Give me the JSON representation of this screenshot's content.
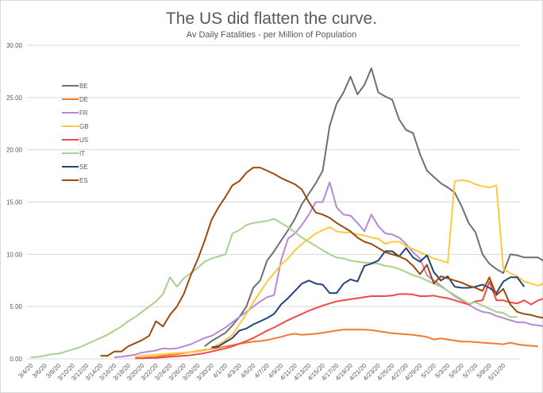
{
  "chart_data": {
    "type": "line",
    "title": "The US did flatten the curve.",
    "subtitle": "Av Daily Fatalities - per Million of Population",
    "xlabel": "",
    "ylabel": "",
    "ylim": [
      0,
      30
    ],
    "yticks": [
      "0.00",
      "5.00",
      "10.00",
      "15.00",
      "20.00",
      "25.00",
      "30.00"
    ],
    "ytick_values": [
      0,
      5,
      10,
      15,
      20,
      25,
      30
    ],
    "grid": true,
    "legend_position": "top-left",
    "x_start": "3/4/20",
    "x_tick_labels": [
      "3/4/20",
      "3/6/20",
      "3/8/20",
      "3/10/20",
      "3/12/20",
      "3/14/20",
      "3/16/20",
      "3/18/20",
      "3/20/20",
      "3/22/20",
      "3/24/20",
      "3/26/20",
      "3/28/20",
      "3/30/20",
      "4/1/20",
      "4/3/20",
      "4/5/20",
      "4/7/20",
      "4/9/20",
      "4/11/20",
      "4/13/20",
      "4/15/20",
      "4/17/20",
      "4/19/20",
      "4/21/20",
      "4/23/20",
      "4/25/20",
      "4/27/20",
      "4/29/20",
      "5/1/20",
      "5/3/20",
      "5/5/20",
      "5/7/20",
      "5/9/20",
      "5/11/20"
    ],
    "series": [
      {
        "name": "BE",
        "color": "#6f6f6f",
        "start_day": 25,
        "values": [
          1.2,
          1.7,
          2.1,
          2.5,
          3.2,
          4.0,
          5.0,
          6.8,
          7.5,
          9.4,
          10.3,
          11.3,
          12.3,
          13.4,
          14.8,
          15.8,
          16.8,
          18.0,
          22.3,
          24.4,
          25.5,
          27.0,
          25.3,
          26.2,
          27.8,
          25.5,
          25.1,
          24.8,
          22.9,
          21.9,
          21.6,
          19.6,
          18.0,
          17.4,
          16.8,
          16.4,
          15.9,
          14.6,
          13.0,
          12.1,
          10.0,
          9.1,
          8.6,
          8.2,
          10.0,
          9.9,
          9.7,
          9.7,
          9.7,
          9.3
        ]
      },
      {
        "name": "DE",
        "color": "#ed7d31",
        "start_day": 15,
        "values": [
          0.05,
          0.1,
          0.15,
          0.2,
          0.3,
          0.35,
          0.45,
          0.55,
          0.65,
          0.75,
          0.85,
          0.95,
          1.05,
          1.2,
          1.3,
          1.45,
          1.55,
          1.65,
          1.7,
          1.8,
          1.95,
          2.1,
          2.3,
          2.4,
          2.3,
          2.35,
          2.4,
          2.5,
          2.6,
          2.7,
          2.8,
          2.8,
          2.8,
          2.8,
          2.75,
          2.65,
          2.55,
          2.45,
          2.4,
          2.35,
          2.3,
          2.2,
          2.1,
          1.85,
          1.95,
          1.85,
          1.75,
          1.65,
          1.65,
          1.6,
          1.55,
          1.5,
          1.45,
          1.4,
          1.55,
          1.4,
          1.3,
          1.25,
          1.2
        ]
      },
      {
        "name": "FR",
        "color": "#b48ad6",
        "start_day": 12,
        "values": [
          0.15,
          0.2,
          0.3,
          0.4,
          0.6,
          0.7,
          0.8,
          1.0,
          0.95,
          1.0,
          1.2,
          1.4,
          1.7,
          2.0,
          2.2,
          2.6,
          3.0,
          3.5,
          4.0,
          4.5,
          5.0,
          5.5,
          5.9,
          6.1,
          9.4,
          11.5,
          12.0,
          12.8,
          13.8,
          15.0,
          15.0,
          16.9,
          14.5,
          13.8,
          13.7,
          13.0,
          12.2,
          13.8,
          12.7,
          12.0,
          11.9,
          11.6,
          11.0,
          10.2,
          9.6,
          8.0,
          7.5,
          7.0,
          6.5,
          6.0,
          5.6,
          5.2,
          4.8,
          4.5,
          4.4,
          4.1,
          3.9,
          3.7,
          3.5,
          3.5,
          3.3,
          3.2,
          3.1
        ]
      },
      {
        "name": "GB",
        "color": "#ffc93c",
        "start_day": 15,
        "values": [
          0.2,
          0.3,
          0.35,
          0.4,
          0.45,
          0.5,
          0.55,
          0.6,
          0.65,
          0.7,
          0.8,
          1.0,
          1.4,
          1.8,
          2.3,
          3.3,
          4.3,
          5.4,
          6.4,
          7.4,
          8.2,
          9.0,
          9.6,
          10.4,
          11.0,
          11.5,
          12.0,
          12.3,
          12.6,
          12.2,
          12.1,
          12.1,
          11.9,
          11.8,
          11.6,
          11.5,
          11.0,
          11.2,
          11.2,
          10.8,
          10.5,
          10.2,
          9.9,
          9.6,
          9.4,
          9.2,
          17.0,
          17.1,
          17.0,
          16.7,
          16.5,
          16.4,
          16.6,
          8.6,
          8.2,
          7.9,
          7.4,
          7.2,
          7.0,
          7.3
        ]
      },
      {
        "name": "US",
        "color": "#f04a4a",
        "start_day": 15,
        "values": [
          0.05,
          0.06,
          0.08,
          0.1,
          0.15,
          0.2,
          0.25,
          0.3,
          0.35,
          0.45,
          0.55,
          0.7,
          0.85,
          1.0,
          1.2,
          1.45,
          1.7,
          2.0,
          2.35,
          2.7,
          3.0,
          3.35,
          3.7,
          4.0,
          4.3,
          4.6,
          4.85,
          5.1,
          5.3,
          5.5,
          5.6,
          5.7,
          5.8,
          5.9,
          6.0,
          6.0,
          6.0,
          6.05,
          6.2,
          6.2,
          6.15,
          6.0,
          6.0,
          6.05,
          5.9,
          5.8,
          5.6,
          5.4,
          5.2,
          5.5,
          5.6,
          7.4,
          5.6,
          5.6,
          5.4,
          5.3,
          5.6,
          5.2,
          5.6,
          5.8,
          7.2,
          7.3,
          7.3
        ]
      },
      {
        "name": "IT",
        "color": "#a9d18e",
        "start_day": 0,
        "values": [
          0.15,
          0.2,
          0.3,
          0.45,
          0.5,
          0.7,
          0.9,
          1.1,
          1.4,
          1.7,
          2.0,
          2.3,
          2.7,
          3.1,
          3.6,
          4.0,
          4.5,
          5.0,
          5.5,
          6.2,
          7.8,
          6.9,
          7.7,
          8.2,
          8.7,
          9.3,
          9.6,
          9.8,
          10.0,
          12.0,
          12.3,
          12.8,
          13.0,
          13.1,
          13.2,
          13.4,
          13.0,
          12.6,
          12.1,
          11.6,
          11.2,
          10.8,
          10.4,
          10.0,
          9.7,
          9.6,
          9.4,
          9.3,
          9.2,
          9.2,
          9.1,
          8.9,
          8.8,
          8.6,
          8.3,
          8.0,
          7.8,
          7.5,
          7.2,
          6.9,
          6.5,
          6.1,
          5.7,
          5.3,
          5.4,
          5.1,
          4.8,
          4.5,
          4.4,
          4.0,
          4.0
        ]
      },
      {
        "name": "SE",
        "color": "#254477",
        "start_day": 26,
        "values": [
          1.1,
          1.2,
          1.6,
          2.0,
          2.7,
          2.9,
          3.3,
          3.6,
          3.9,
          4.3,
          5.2,
          5.8,
          6.5,
          7.2,
          7.5,
          7.2,
          7.1,
          6.3,
          6.3,
          7.2,
          7.6,
          7.4,
          8.9,
          9.1,
          9.4,
          10.3,
          10.3,
          9.8,
          10.6,
          9.7,
          9.3,
          9.9,
          8.3,
          7.5,
          7.9,
          6.9,
          6.8,
          6.8,
          6.9,
          7.1,
          6.8,
          6.3,
          7.4,
          7.8,
          7.8,
          6.9
        ]
      },
      {
        "name": "ES",
        "color": "#9c4a0e",
        "start_day": 10,
        "values": [
          0.3,
          0.3,
          0.7,
          0.7,
          1.2,
          1.5,
          1.8,
          2.2,
          3.6,
          3.1,
          4.2,
          5.0,
          6.2,
          8.0,
          9.5,
          11.3,
          13.3,
          14.5,
          15.5,
          16.6,
          17.0,
          17.8,
          18.3,
          18.3,
          18.0,
          17.7,
          17.3,
          17.0,
          16.7,
          16.2,
          15.0,
          14.0,
          13.8,
          13.5,
          13.0,
          12.6,
          12.2,
          11.6,
          11.2,
          11.0,
          10.6,
          10.2,
          10.0,
          9.8,
          9.5,
          8.9,
          8.1,
          9.0,
          7.2,
          7.9,
          7.7,
          7.5,
          7.3,
          7.0,
          6.8,
          6.5,
          7.8,
          6.1,
          6.7,
          5.2,
          4.5,
          4.3,
          4.2,
          4.0,
          3.9
        ]
      }
    ]
  }
}
